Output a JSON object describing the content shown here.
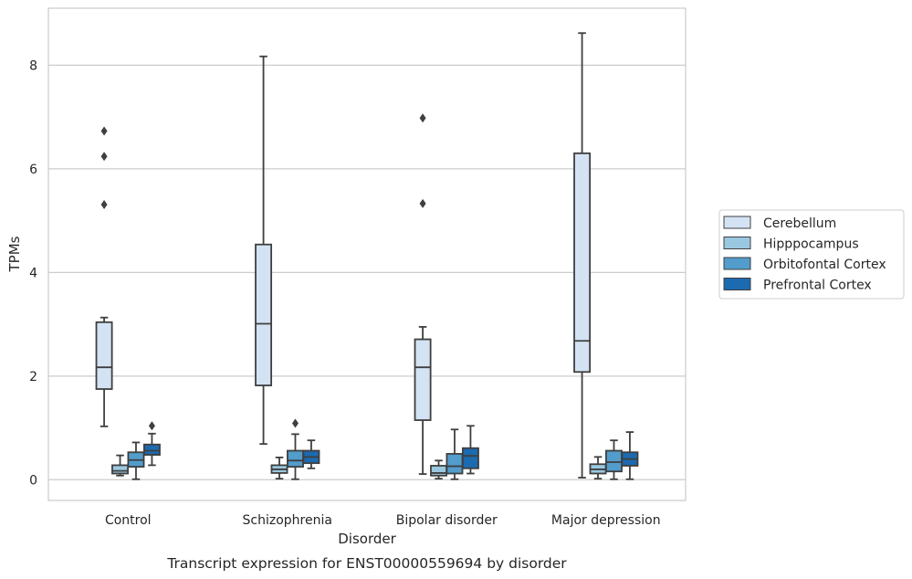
{
  "chart_data": {
    "type": "box",
    "title": "Transcript expression for ENST00000559694 by disorder",
    "xlabel": "Disorder",
    "ylabel": "TPMs",
    "ylim": [
      -0.4,
      9.1
    ],
    "yticks": [
      0,
      2,
      4,
      6,
      8
    ],
    "grid": true,
    "legend_position": "right",
    "categories": [
      "Control",
      "Schizophrenia",
      "Bipolar disorder",
      "Major depression"
    ],
    "series": [
      {
        "name": "Cerebellum",
        "color": "#d3e3f3",
        "boxes": [
          {
            "whisker_low": 1.03,
            "q1": 1.75,
            "median": 2.17,
            "q3": 3.04,
            "whisker_high": 3.13,
            "outliers": [
              5.31,
              6.24,
              6.73
            ]
          },
          {
            "whisker_low": 0.69,
            "q1": 1.82,
            "median": 3.01,
            "q3": 4.54,
            "whisker_high": 8.17,
            "outliers": []
          },
          {
            "whisker_low": 0.11,
            "q1": 1.15,
            "median": 2.17,
            "q3": 2.71,
            "whisker_high": 2.95,
            "outliers": [
              5.33,
              6.98
            ]
          },
          {
            "whisker_low": 0.04,
            "q1": 2.08,
            "median": 2.68,
            "q3": 6.3,
            "whisker_high": 8.62,
            "outliers": []
          }
        ]
      },
      {
        "name": "Hipppocampus",
        "color": "#9ac8e0",
        "boxes": [
          {
            "whisker_low": 0.08,
            "q1": 0.12,
            "median": 0.17,
            "q3": 0.28,
            "whisker_high": 0.47,
            "outliers": []
          },
          {
            "whisker_low": 0.02,
            "q1": 0.13,
            "median": 0.2,
            "q3": 0.28,
            "whisker_high": 0.43,
            "outliers": []
          },
          {
            "whisker_low": 0.02,
            "q1": 0.08,
            "median": 0.13,
            "q3": 0.27,
            "whisker_high": 0.37,
            "outliers": []
          },
          {
            "whisker_low": 0.02,
            "q1": 0.12,
            "median": 0.2,
            "q3": 0.3,
            "whisker_high": 0.44,
            "outliers": []
          }
        ]
      },
      {
        "name": "Orbitofontal Cortex",
        "color": "#529dcc",
        "boxes": [
          {
            "whisker_low": 0.01,
            "q1": 0.25,
            "median": 0.38,
            "q3": 0.53,
            "whisker_high": 0.72,
            "outliers": []
          },
          {
            "whisker_low": 0.01,
            "q1": 0.25,
            "median": 0.37,
            "q3": 0.56,
            "whisker_high": 0.88,
            "outliers": [
              1.09
            ]
          },
          {
            "whisker_low": 0.01,
            "q1": 0.12,
            "median": 0.26,
            "q3": 0.5,
            "whisker_high": 0.97,
            "outliers": []
          },
          {
            "whisker_low": 0.01,
            "q1": 0.16,
            "median": 0.34,
            "q3": 0.56,
            "whisker_high": 0.76,
            "outliers": []
          }
        ]
      },
      {
        "name": "Prefrontal Cortex",
        "color": "#1c6aaf",
        "boxes": [
          {
            "whisker_low": 0.28,
            "q1": 0.48,
            "median": 0.56,
            "q3": 0.68,
            "whisker_high": 0.89,
            "outliers": [
              1.04
            ]
          },
          {
            "whisker_low": 0.22,
            "q1": 0.32,
            "median": 0.44,
            "q3": 0.56,
            "whisker_high": 0.76,
            "outliers": []
          },
          {
            "whisker_low": 0.12,
            "q1": 0.22,
            "median": 0.46,
            "q3": 0.61,
            "whisker_high": 1.04,
            "outliers": []
          },
          {
            "whisker_low": 0.01,
            "q1": 0.27,
            "median": 0.4,
            "q3": 0.53,
            "whisker_high": 0.92,
            "outliers": []
          }
        ]
      }
    ]
  }
}
